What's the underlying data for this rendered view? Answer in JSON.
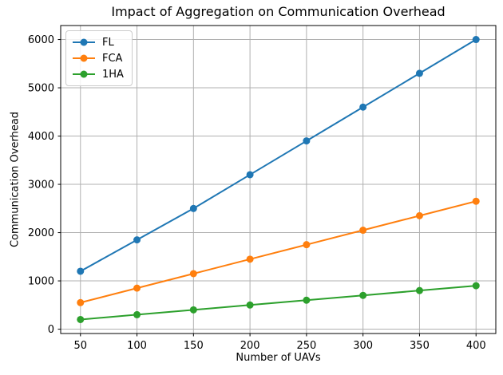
{
  "chart_data": {
    "type": "line",
    "title": "Impact of Aggregation on Communication Overhead",
    "xlabel": "Number of UAVs",
    "ylabel": "Communication Overhead",
    "x": [
      50,
      100,
      150,
      200,
      250,
      300,
      350,
      400
    ],
    "series": [
      {
        "name": "FL",
        "color": "#1f77b4",
        "values": [
          1200,
          1850,
          2500,
          3200,
          3900,
          4600,
          5300,
          6000
        ]
      },
      {
        "name": "FCA",
        "color": "#ff7f0e",
        "values": [
          550,
          850,
          1150,
          1450,
          1750,
          2050,
          2350,
          2650
        ]
      },
      {
        "name": "1HA",
        "color": "#2ca02c",
        "values": [
          200,
          300,
          400,
          500,
          600,
          700,
          800,
          900
        ]
      }
    ],
    "xtick_labels": [
      "50",
      "100",
      "150",
      "200",
      "250",
      "300",
      "350",
      "400"
    ],
    "ytick_labels": [
      "0",
      "1000",
      "2000",
      "3000",
      "4000",
      "5000",
      "6000"
    ],
    "xticks": [
      50,
      100,
      150,
      200,
      250,
      300,
      350,
      400
    ],
    "yticks": [
      0,
      1000,
      2000,
      3000,
      4000,
      5000,
      6000
    ],
    "xlim": [
      32.5,
      417.5
    ],
    "ylim": [
      -90,
      6290
    ],
    "grid": true,
    "grid_color": "#b0b0b0",
    "axis_color": "#000000",
    "text_color": "#000000",
    "legend_position": "upper left",
    "marker": "circle"
  }
}
